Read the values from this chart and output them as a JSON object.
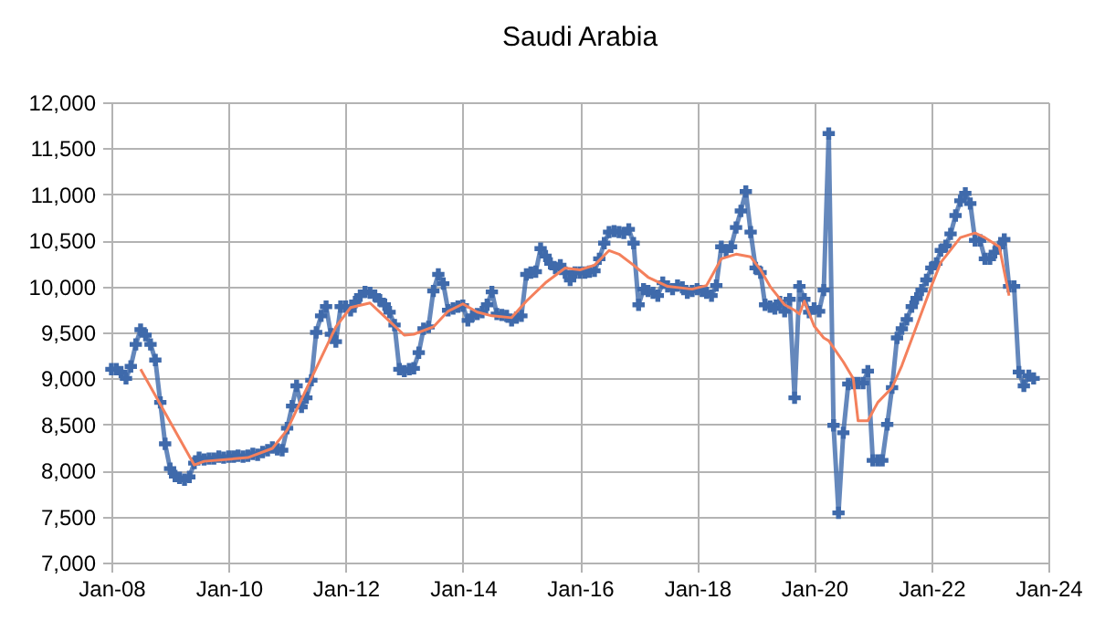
{
  "chart_data": {
    "type": "line",
    "title": "Saudi Arabia",
    "grid": true,
    "xlim": [
      "2008-01",
      "2024-01"
    ],
    "xticks": [
      {
        "value": "2008-01",
        "label": "Jan-08"
      },
      {
        "value": "2010-01",
        "label": "Jan-10"
      },
      {
        "value": "2012-01",
        "label": "Jan-12"
      },
      {
        "value": "2014-01",
        "label": "Jan-14"
      },
      {
        "value": "2016-01",
        "label": "Jan-16"
      },
      {
        "value": "2018-01",
        "label": "Jan-18"
      },
      {
        "value": "2020-01",
        "label": "Jan-20"
      },
      {
        "value": "2022-01",
        "label": "Jan-22"
      },
      {
        "value": "2024-01",
        "label": "Jan-24"
      }
    ],
    "ylim": [
      7000,
      12000
    ],
    "yticks": [
      {
        "value": 7000,
        "label": "7,000"
      },
      {
        "value": 7500,
        "label": "7,500"
      },
      {
        "value": 8000,
        "label": "8,000"
      },
      {
        "value": 8500,
        "label": "8,500"
      },
      {
        "value": 9000,
        "label": "9,000"
      },
      {
        "value": 9500,
        "label": "9,500"
      },
      {
        "value": 10000,
        "label": "10,000"
      },
      {
        "value": 10500,
        "label": "10,500"
      },
      {
        "value": 11000,
        "label": "11,000"
      },
      {
        "value": 11500,
        "label": "11,500"
      },
      {
        "value": 12000,
        "label": "12,000"
      }
    ],
    "series": [
      {
        "type": "line",
        "color": "#3f6aab",
        "marker": "cross",
        "line_style": "solid",
        "x": [
          "2008-01",
          "2008-02",
          "2008-03",
          "2008-04",
          "2008-05",
          "2008-06",
          "2008-07",
          "2008-08",
          "2008-09",
          "2008-10",
          "2008-11",
          "2008-12",
          "2009-01",
          "2009-02",
          "2009-03",
          "2009-04",
          "2009-05",
          "2009-06",
          "2009-07",
          "2009-08",
          "2009-09",
          "2009-10",
          "2009-11",
          "2009-12",
          "2010-01",
          "2010-02",
          "2010-03",
          "2010-04",
          "2010-05",
          "2010-06",
          "2010-07",
          "2010-08",
          "2010-09",
          "2010-10",
          "2010-11",
          "2010-12",
          "2011-01",
          "2011-02",
          "2011-03",
          "2011-04",
          "2011-05",
          "2011-06",
          "2011-07",
          "2011-08",
          "2011-09",
          "2011-10",
          "2011-11",
          "2011-12",
          "2012-01",
          "2012-02",
          "2012-03",
          "2012-04",
          "2012-05",
          "2012-06",
          "2012-07",
          "2012-08",
          "2012-09",
          "2012-10",
          "2012-11",
          "2012-12",
          "2013-01",
          "2013-02",
          "2013-03",
          "2013-04",
          "2013-05",
          "2013-06",
          "2013-07",
          "2013-08",
          "2013-09",
          "2013-10",
          "2013-11",
          "2013-12",
          "2014-01",
          "2014-02",
          "2014-03",
          "2014-04",
          "2014-05",
          "2014-06",
          "2014-07",
          "2014-08",
          "2014-09",
          "2014-10",
          "2014-11",
          "2014-12",
          "2015-01",
          "2015-02",
          "2015-03",
          "2015-04",
          "2015-05",
          "2015-06",
          "2015-07",
          "2015-08",
          "2015-09",
          "2015-10",
          "2015-11",
          "2015-12",
          "2016-01",
          "2016-02",
          "2016-03",
          "2016-04",
          "2016-05",
          "2016-06",
          "2016-07",
          "2016-08",
          "2016-09",
          "2016-10",
          "2016-11",
          "2016-12",
          "2017-01",
          "2017-02",
          "2017-03",
          "2017-04",
          "2017-05",
          "2017-06",
          "2017-07",
          "2017-08",
          "2017-09",
          "2017-10",
          "2017-11",
          "2017-12",
          "2018-01",
          "2018-02",
          "2018-03",
          "2018-04",
          "2018-05",
          "2018-06",
          "2018-07",
          "2018-08",
          "2018-09",
          "2018-10",
          "2018-11",
          "2018-12",
          "2019-01",
          "2019-02",
          "2019-03",
          "2019-04",
          "2019-05",
          "2019-06",
          "2019-07",
          "2019-08",
          "2019-09",
          "2019-10",
          "2019-11",
          "2019-12",
          "2020-01",
          "2020-02",
          "2020-03",
          "2020-04",
          "2020-05",
          "2020-06",
          "2020-07",
          "2020-08",
          "2020-09",
          "2020-10",
          "2020-11",
          "2020-12",
          "2021-01",
          "2021-02",
          "2021-03",
          "2021-04",
          "2021-05",
          "2021-06",
          "2021-07",
          "2021-08",
          "2021-09",
          "2021-10",
          "2021-11",
          "2021-12",
          "2022-01",
          "2022-02",
          "2022-03",
          "2022-04",
          "2022-05",
          "2022-06",
          "2022-07",
          "2022-08",
          "2022-09",
          "2022-10",
          "2022-11",
          "2022-12",
          "2023-01",
          "2023-02",
          "2023-03",
          "2023-04",
          "2023-05",
          "2023-06",
          "2023-07",
          "2023-08",
          "2023-09",
          "2023-10"
        ],
        "values": [
          9100,
          9100,
          9070,
          9000,
          9130,
          9370,
          9530,
          9470,
          9370,
          9200,
          8740,
          8290,
          8020,
          7940,
          7920,
          7900,
          7930,
          8080,
          8140,
          8120,
          8130,
          8130,
          8150,
          8140,
          8150,
          8150,
          8160,
          8150,
          8160,
          8180,
          8170,
          8200,
          8220,
          8250,
          8230,
          8220,
          8460,
          8700,
          8920,
          8690,
          8790,
          8980,
          9500,
          9680,
          9780,
          9480,
          9400,
          9780,
          9780,
          9740,
          9830,
          9900,
          9940,
          9930,
          9900,
          9850,
          9800,
          9720,
          9580,
          9100,
          9080,
          9100,
          9110,
          9280,
          9540,
          9560,
          9950,
          10130,
          10030,
          9740,
          9760,
          9780,
          9790,
          9630,
          9680,
          9700,
          9720,
          9800,
          9940,
          9700,
          9690,
          9680,
          9630,
          9660,
          9680,
          10130,
          10150,
          10160,
          10410,
          10330,
          10250,
          10200,
          10230,
          10150,
          10070,
          10150,
          10150,
          10150,
          10160,
          10170,
          10300,
          10470,
          10590,
          10600,
          10590,
          10580,
          10620,
          10470,
          9800,
          9970,
          9950,
          9930,
          9900,
          10040,
          10000,
          9970,
          10010,
          9990,
          9930,
          9950,
          9970,
          9950,
          9930,
          9900,
          10010,
          10430,
          10390,
          10430,
          10640,
          10820,
          11030,
          10590,
          10200,
          10150,
          9800,
          9780,
          9760,
          9830,
          9730,
          9860,
          8790,
          10000,
          9860,
          9720,
          9760,
          9730,
          9960,
          11660,
          8490,
          7540,
          8410,
          8940,
          8950,
          8950,
          8950,
          9080,
          8110,
          8110,
          8110,
          8500,
          8900,
          9440,
          9540,
          9640,
          9780,
          9870,
          9960,
          10070,
          10200,
          10250,
          10390,
          10440,
          10570,
          10770,
          10930,
          11010,
          10900,
          10500,
          10500,
          10300,
          10300,
          10370,
          10430,
          10510,
          10000,
          10000,
          9070,
          8920,
          9030,
          9000
        ]
      },
      {
        "type": "line",
        "color": "#f4805c",
        "marker": "none",
        "line_style": "solid",
        "x": [
          "2008-07",
          "2009-06",
          "2009-08",
          "2010-05",
          "2010-10",
          "2011-01",
          "2011-06",
          "2011-11",
          "2012-02",
          "2012-06",
          "2012-09",
          "2013-01",
          "2013-03",
          "2013-07",
          "2013-10",
          "2014-01",
          "2014-04",
          "2014-07",
          "2014-11",
          "2015-02",
          "2015-06",
          "2015-10",
          "2016-01",
          "2016-04",
          "2016-07",
          "2016-09",
          "2016-12",
          "2017-03",
          "2017-07",
          "2017-12",
          "2018-03",
          "2018-06",
          "2018-09",
          "2018-12",
          "2019-02",
          "2019-04",
          "2019-07",
          "2019-09",
          "2019-10",
          "2019-11",
          "2020-01",
          "2020-03",
          "2020-04",
          "2020-07",
          "2020-09",
          "2020-10",
          "2020-12",
          "2021-02",
          "2021-05",
          "2021-07",
          "2021-10",
          "2022-01",
          "2022-03",
          "2022-07",
          "2022-10",
          "2022-12",
          "2023-03",
          "2023-05"
        ],
        "values": [
          9100,
          8060,
          8100,
          8140,
          8240,
          8440,
          9000,
          9560,
          9770,
          9820,
          9670,
          9470,
          9480,
          9560,
          9730,
          9810,
          9720,
          9680,
          9660,
          9840,
          10040,
          10200,
          10180,
          10230,
          10390,
          10350,
          10230,
          10100,
          10000,
          9970,
          10010,
          10300,
          10350,
          10320,
          10180,
          10000,
          9800,
          9740,
          9700,
          9840,
          9570,
          9440,
          9410,
          9180,
          9000,
          8540,
          8540,
          8740,
          8900,
          9140,
          9570,
          10000,
          10260,
          10530,
          10580,
          10530,
          10430,
          9900
        ]
      }
    ]
  }
}
